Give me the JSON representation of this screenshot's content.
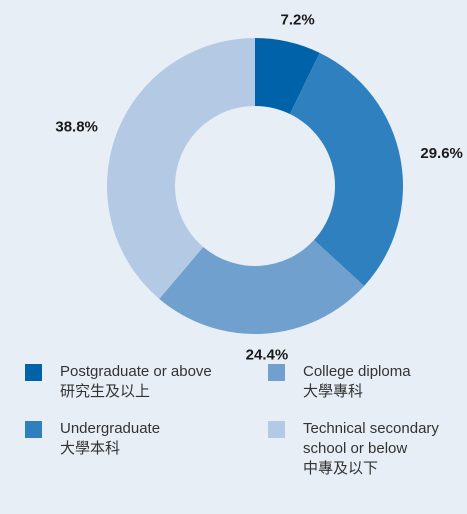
{
  "chart_data": {
    "type": "donut",
    "categories": [
      [
        "Postgraduate or above",
        "研究生及以上"
      ],
      [
        "Undergraduate",
        "大學本科"
      ],
      [
        "College diploma",
        "大學專科"
      ],
      [
        "Technical secondary",
        "school or below",
        "中專及以下"
      ]
    ],
    "values": [
      7.2,
      29.6,
      24.4,
      38.8
    ],
    "value_labels": [
      "7.2%",
      "29.6%",
      "24.4%",
      "38.8%"
    ],
    "colors": [
      "#0063a9",
      "#2f80bf",
      "#70a0cd",
      "#b4c9e4"
    ]
  }
}
